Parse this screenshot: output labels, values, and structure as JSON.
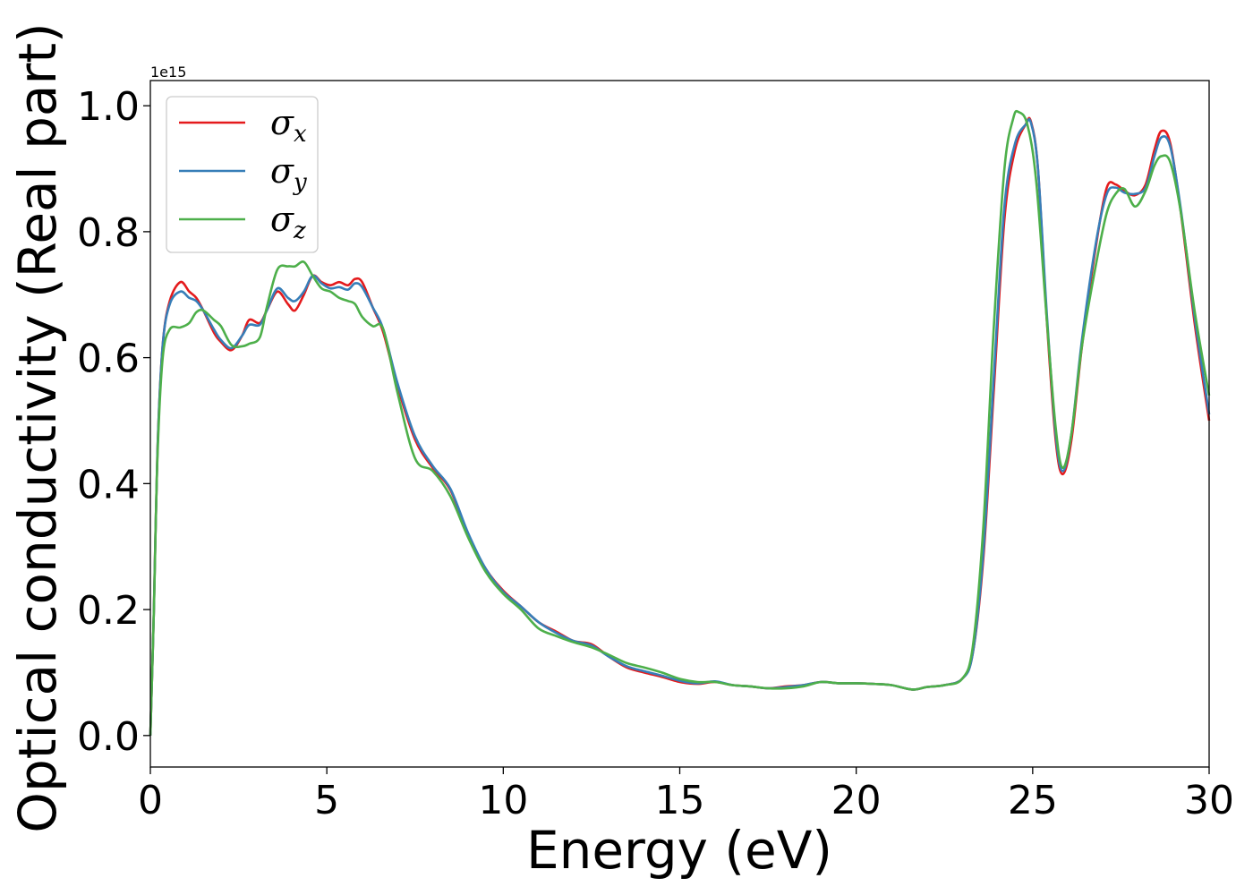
{
  "chart_data": {
    "type": "line",
    "xlabel": "Energy (eV)",
    "ylabel": "Optical conductivity (Real part)",
    "y_offset_text": "1e15",
    "xlim": [
      0,
      30
    ],
    "ylim": [
      -0.05,
      1.04
    ],
    "x_ticks": [
      0,
      5,
      10,
      15,
      20,
      25,
      30
    ],
    "x_tick_labels": [
      "0",
      "5",
      "10",
      "15",
      "20",
      "25",
      "30"
    ],
    "y_ticks": [
      0.0,
      0.2,
      0.4,
      0.6,
      0.8,
      1.0
    ],
    "y_tick_labels": [
      "0.0",
      "0.2",
      "0.4",
      "0.6",
      "0.8",
      "1.0"
    ],
    "grid": false,
    "legend_position": "top-left",
    "series": [
      {
        "name": "σx",
        "base": "σ",
        "sub": "x",
        "color": "#e41a1c",
        "points": [
          [
            0,
            0
          ],
          [
            0.1,
            0.2
          ],
          [
            0.2,
            0.45
          ],
          [
            0.35,
            0.62
          ],
          [
            0.55,
            0.69
          ],
          [
            0.85,
            0.72
          ],
          [
            1.1,
            0.705
          ],
          [
            1.3,
            0.695
          ],
          [
            1.5,
            0.675
          ],
          [
            1.8,
            0.64
          ],
          [
            2.0,
            0.625
          ],
          [
            2.3,
            0.612
          ],
          [
            2.6,
            0.635
          ],
          [
            2.8,
            0.66
          ],
          [
            3.1,
            0.655
          ],
          [
            3.3,
            0.675
          ],
          [
            3.6,
            0.705
          ],
          [
            3.9,
            0.685
          ],
          [
            4.1,
            0.675
          ],
          [
            4.35,
            0.7
          ],
          [
            4.6,
            0.73
          ],
          [
            4.85,
            0.72
          ],
          [
            5.1,
            0.715
          ],
          [
            5.35,
            0.72
          ],
          [
            5.6,
            0.715
          ],
          [
            5.8,
            0.725
          ],
          [
            6.0,
            0.72
          ],
          [
            6.3,
            0.68
          ],
          [
            6.6,
            0.64
          ],
          [
            7.0,
            0.555
          ],
          [
            7.5,
            0.47
          ],
          [
            8.0,
            0.425
          ],
          [
            8.5,
            0.39
          ],
          [
            9.0,
            0.32
          ],
          [
            9.5,
            0.265
          ],
          [
            10.0,
            0.23
          ],
          [
            10.5,
            0.205
          ],
          [
            11.0,
            0.18
          ],
          [
            11.5,
            0.165
          ],
          [
            12.0,
            0.15
          ],
          [
            12.5,
            0.145
          ],
          [
            13.0,
            0.125
          ],
          [
            13.5,
            0.108
          ],
          [
            14.0,
            0.1
          ],
          [
            14.5,
            0.093
          ],
          [
            15.0,
            0.085
          ],
          [
            15.5,
            0.082
          ],
          [
            16.0,
            0.085
          ],
          [
            16.5,
            0.08
          ],
          [
            17.0,
            0.078
          ],
          [
            17.5,
            0.075
          ],
          [
            18.0,
            0.078
          ],
          [
            18.5,
            0.08
          ],
          [
            19.0,
            0.085
          ],
          [
            19.5,
            0.083
          ],
          [
            20.0,
            0.083
          ],
          [
            20.5,
            0.082
          ],
          [
            21.0,
            0.08
          ],
          [
            21.6,
            0.073
          ],
          [
            22.0,
            0.077
          ],
          [
            22.5,
            0.08
          ],
          [
            23.0,
            0.09
          ],
          [
            23.3,
            0.13
          ],
          [
            23.6,
            0.28
          ],
          [
            23.9,
            0.55
          ],
          [
            24.2,
            0.82
          ],
          [
            24.5,
            0.93
          ],
          [
            24.8,
            0.97
          ],
          [
            24.95,
            0.975
          ],
          [
            25.15,
            0.9
          ],
          [
            25.4,
            0.66
          ],
          [
            25.65,
            0.47
          ],
          [
            25.85,
            0.415
          ],
          [
            26.1,
            0.47
          ],
          [
            26.4,
            0.62
          ],
          [
            26.8,
            0.78
          ],
          [
            27.1,
            0.87
          ],
          [
            27.35,
            0.875
          ],
          [
            27.6,
            0.865
          ],
          [
            27.9,
            0.858
          ],
          [
            28.2,
            0.875
          ],
          [
            28.45,
            0.93
          ],
          [
            28.65,
            0.96
          ],
          [
            28.9,
            0.94
          ],
          [
            29.2,
            0.83
          ],
          [
            29.6,
            0.65
          ],
          [
            30.0,
            0.5
          ]
        ]
      },
      {
        "name": "σy",
        "base": "σ",
        "sub": "y",
        "color": "#377eb8",
        "points": [
          [
            0,
            0
          ],
          [
            0.1,
            0.2
          ],
          [
            0.2,
            0.45
          ],
          [
            0.35,
            0.62
          ],
          [
            0.55,
            0.685
          ],
          [
            0.85,
            0.705
          ],
          [
            1.1,
            0.695
          ],
          [
            1.3,
            0.69
          ],
          [
            1.5,
            0.675
          ],
          [
            1.8,
            0.645
          ],
          [
            2.0,
            0.628
          ],
          [
            2.3,
            0.615
          ],
          [
            2.6,
            0.635
          ],
          [
            2.8,
            0.652
          ],
          [
            3.1,
            0.652
          ],
          [
            3.3,
            0.675
          ],
          [
            3.6,
            0.71
          ],
          [
            3.9,
            0.695
          ],
          [
            4.1,
            0.69
          ],
          [
            4.35,
            0.705
          ],
          [
            4.6,
            0.73
          ],
          [
            4.85,
            0.718
          ],
          [
            5.1,
            0.71
          ],
          [
            5.35,
            0.712
          ],
          [
            5.6,
            0.708
          ],
          [
            5.8,
            0.718
          ],
          [
            6.0,
            0.712
          ],
          [
            6.3,
            0.68
          ],
          [
            6.6,
            0.645
          ],
          [
            7.0,
            0.56
          ],
          [
            7.5,
            0.475
          ],
          [
            8.0,
            0.428
          ],
          [
            8.5,
            0.392
          ],
          [
            9.0,
            0.322
          ],
          [
            9.5,
            0.265
          ],
          [
            10.0,
            0.228
          ],
          [
            10.5,
            0.205
          ],
          [
            11.0,
            0.18
          ],
          [
            11.5,
            0.163
          ],
          [
            12.0,
            0.15
          ],
          [
            12.5,
            0.143
          ],
          [
            13.0,
            0.125
          ],
          [
            13.5,
            0.11
          ],
          [
            14.0,
            0.102
          ],
          [
            14.5,
            0.095
          ],
          [
            15.0,
            0.087
          ],
          [
            15.5,
            0.083
          ],
          [
            16.0,
            0.086
          ],
          [
            16.5,
            0.08
          ],
          [
            17.0,
            0.078
          ],
          [
            17.5,
            0.075
          ],
          [
            18.0,
            0.077
          ],
          [
            18.5,
            0.08
          ],
          [
            19.0,
            0.085
          ],
          [
            19.5,
            0.083
          ],
          [
            20.0,
            0.083
          ],
          [
            20.5,
            0.082
          ],
          [
            21.0,
            0.08
          ],
          [
            21.6,
            0.073
          ],
          [
            22.0,
            0.077
          ],
          [
            22.5,
            0.08
          ],
          [
            23.0,
            0.09
          ],
          [
            23.3,
            0.13
          ],
          [
            23.6,
            0.29
          ],
          [
            23.9,
            0.57
          ],
          [
            24.2,
            0.84
          ],
          [
            24.5,
            0.94
          ],
          [
            24.8,
            0.97
          ],
          [
            24.95,
            0.973
          ],
          [
            25.15,
            0.9
          ],
          [
            25.4,
            0.67
          ],
          [
            25.65,
            0.48
          ],
          [
            25.85,
            0.42
          ],
          [
            26.1,
            0.48
          ],
          [
            26.4,
            0.63
          ],
          [
            26.8,
            0.785
          ],
          [
            27.1,
            0.86
          ],
          [
            27.35,
            0.87
          ],
          [
            27.6,
            0.862
          ],
          [
            27.9,
            0.86
          ],
          [
            28.2,
            0.87
          ],
          [
            28.45,
            0.92
          ],
          [
            28.65,
            0.95
          ],
          [
            28.9,
            0.935
          ],
          [
            29.2,
            0.835
          ],
          [
            29.6,
            0.66
          ],
          [
            30.0,
            0.51
          ]
        ]
      },
      {
        "name": "σz",
        "base": "σ",
        "sub": "z",
        "color": "#4daf4a",
        "points": [
          [
            0,
            0
          ],
          [
            0.1,
            0.2
          ],
          [
            0.2,
            0.44
          ],
          [
            0.35,
            0.6
          ],
          [
            0.55,
            0.645
          ],
          [
            0.85,
            0.648
          ],
          [
            1.1,
            0.655
          ],
          [
            1.3,
            0.672
          ],
          [
            1.5,
            0.675
          ],
          [
            1.8,
            0.66
          ],
          [
            2.0,
            0.65
          ],
          [
            2.3,
            0.62
          ],
          [
            2.6,
            0.618
          ],
          [
            2.8,
            0.622
          ],
          [
            3.1,
            0.632
          ],
          [
            3.3,
            0.68
          ],
          [
            3.6,
            0.74
          ],
          [
            3.9,
            0.745
          ],
          [
            4.1,
            0.745
          ],
          [
            4.35,
            0.752
          ],
          [
            4.6,
            0.73
          ],
          [
            4.85,
            0.71
          ],
          [
            5.1,
            0.705
          ],
          [
            5.35,
            0.695
          ],
          [
            5.6,
            0.69
          ],
          [
            5.8,
            0.685
          ],
          [
            6.0,
            0.665
          ],
          [
            6.3,
            0.65
          ],
          [
            6.6,
            0.645
          ],
          [
            7.0,
            0.545
          ],
          [
            7.5,
            0.44
          ],
          [
            8.0,
            0.42
          ],
          [
            8.5,
            0.38
          ],
          [
            9.0,
            0.315
          ],
          [
            9.5,
            0.26
          ],
          [
            10.0,
            0.225
          ],
          [
            10.5,
            0.2
          ],
          [
            11.0,
            0.17
          ],
          [
            11.5,
            0.158
          ],
          [
            12.0,
            0.148
          ],
          [
            12.5,
            0.14
          ],
          [
            13.0,
            0.128
          ],
          [
            13.5,
            0.115
          ],
          [
            14.0,
            0.108
          ],
          [
            14.5,
            0.1
          ],
          [
            15.0,
            0.09
          ],
          [
            15.5,
            0.085
          ],
          [
            16.0,
            0.085
          ],
          [
            16.5,
            0.08
          ],
          [
            17.0,
            0.078
          ],
          [
            17.5,
            0.075
          ],
          [
            18.0,
            0.075
          ],
          [
            18.5,
            0.078
          ],
          [
            19.0,
            0.085
          ],
          [
            19.5,
            0.083
          ],
          [
            20.0,
            0.083
          ],
          [
            20.5,
            0.082
          ],
          [
            21.0,
            0.08
          ],
          [
            21.6,
            0.073
          ],
          [
            22.0,
            0.077
          ],
          [
            22.5,
            0.08
          ],
          [
            23.0,
            0.09
          ],
          [
            23.3,
            0.14
          ],
          [
            23.6,
            0.33
          ],
          [
            23.9,
            0.65
          ],
          [
            24.2,
            0.9
          ],
          [
            24.45,
            0.98
          ],
          [
            24.6,
            0.99
          ],
          [
            24.85,
            0.97
          ],
          [
            25.1,
            0.88
          ],
          [
            25.4,
            0.66
          ],
          [
            25.65,
            0.49
          ],
          [
            25.85,
            0.425
          ],
          [
            26.1,
            0.48
          ],
          [
            26.4,
            0.62
          ],
          [
            26.8,
            0.75
          ],
          [
            27.1,
            0.83
          ],
          [
            27.35,
            0.86
          ],
          [
            27.6,
            0.868
          ],
          [
            27.9,
            0.84
          ],
          [
            28.2,
            0.865
          ],
          [
            28.45,
            0.905
          ],
          [
            28.65,
            0.92
          ],
          [
            28.9,
            0.91
          ],
          [
            29.2,
            0.83
          ],
          [
            29.6,
            0.67
          ],
          [
            30.0,
            0.54
          ]
        ]
      }
    ]
  }
}
